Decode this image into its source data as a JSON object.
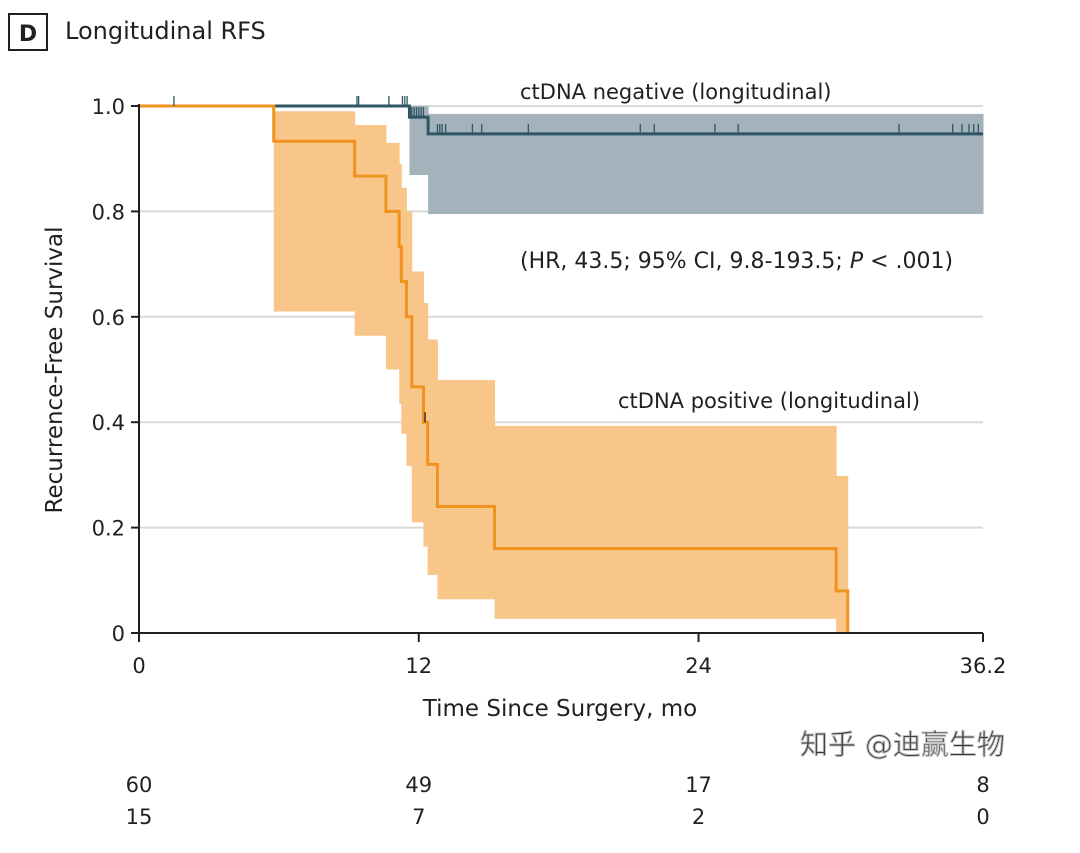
{
  "panel": {
    "letter": "D",
    "title": "Longitudinal RFS"
  },
  "watermark": "知乎 @迪赢生物",
  "colors": {
    "positive_line": "#f0921e",
    "positive_band": "#f9c68a",
    "negative_line": "#2f5663",
    "negative_band": "#a3b2bb",
    "grid": "#d9d9d9",
    "axis": "#231f20"
  },
  "chart_data": {
    "type": "line",
    "subtype": "kaplan-meier",
    "title": "Longitudinal RFS",
    "xlabel": "Time Since Surgery, mo",
    "ylabel": "Recurrence-Free Survival",
    "xlim": [
      0,
      36.2
    ],
    "ylim": [
      0,
      1.0
    ],
    "xticks": [
      0,
      12,
      24,
      36.2
    ],
    "xtick_labels": [
      "0",
      "12",
      "24",
      "36.2"
    ],
    "yticks": [
      0,
      0.2,
      0.4,
      0.6,
      0.8,
      1.0
    ],
    "ytick_labels": [
      "0",
      "0.2",
      "0.4",
      "0.6",
      "0.8",
      "1.0"
    ],
    "grid": "horizontal",
    "annotation": {
      "prefix": "(HR, 43.5; 95% CI, 9.8-193.5; ",
      "p": "P",
      "suffix": " < .001)"
    },
    "series": [
      {
        "name": "ctDNA negative (longitudinal)",
        "steps": [
          [
            0,
            1.0
          ],
          [
            11.6,
            0.979
          ],
          [
            12.4,
            0.947
          ],
          [
            36.2,
            0.947
          ]
        ],
        "ci": [
          [
            11.6,
            12.4,
            0.869,
            1.0
          ],
          [
            12.4,
            36.2,
            0.795,
            0.985
          ]
        ],
        "censor_times": [
          1.5,
          9.35,
          9.42,
          10.72,
          11.3,
          11.4,
          11.5,
          11.7,
          11.8,
          11.9,
          12.0,
          12.1,
          12.2,
          12.8,
          12.9,
          13.0,
          13.15,
          14.3,
          14.7,
          16.7,
          21.5,
          22.1,
          24.7,
          25.7,
          32.6,
          34.9,
          35.3,
          35.6,
          35.8,
          36.0
        ]
      },
      {
        "name": "ctDNA positive (longitudinal)",
        "steps": [
          [
            0,
            1.0
          ],
          [
            5.78,
            0.933
          ],
          [
            9.25,
            0.867
          ],
          [
            10.59,
            0.8
          ],
          [
            11.16,
            0.733
          ],
          [
            11.25,
            0.667
          ],
          [
            11.47,
            0.6
          ],
          [
            11.7,
            0.467
          ],
          [
            12.2,
            0.4
          ],
          [
            12.38,
            0.32
          ],
          [
            12.8,
            0.24
          ],
          [
            15.25,
            0.16
          ],
          [
            29.9,
            0.08
          ],
          [
            30.4,
            0.0
          ]
        ],
        "ci": [
          [
            5.78,
            9.25,
            0.61,
            0.99
          ],
          [
            9.25,
            10.59,
            0.564,
            0.964
          ],
          [
            10.59,
            11.16,
            0.5,
            0.93
          ],
          [
            11.16,
            11.25,
            0.435,
            0.89
          ],
          [
            11.25,
            11.47,
            0.378,
            0.845
          ],
          [
            11.47,
            11.7,
            0.317,
            0.8
          ],
          [
            11.7,
            12.2,
            0.21,
            0.686
          ],
          [
            12.2,
            12.38,
            0.164,
            0.626
          ],
          [
            12.38,
            12.8,
            0.11,
            0.557
          ],
          [
            12.8,
            15.25,
            0.064,
            0.48
          ],
          [
            15.25,
            29.9,
            0.027,
            0.393
          ],
          [
            29.9,
            30.4,
            0.0,
            0.298
          ]
        ],
        "censor_times": [
          12.27
        ]
      }
    ],
    "risk_table": {
      "times": [
        0,
        12,
        24,
        36.2
      ],
      "rows": [
        {
          "group": "ctDNA negative",
          "values": [
            "60",
            "49",
            "17",
            "8"
          ]
        },
        {
          "group": "ctDNA positive",
          "values": [
            "15",
            "7",
            "2",
            "0"
          ]
        }
      ]
    }
  }
}
